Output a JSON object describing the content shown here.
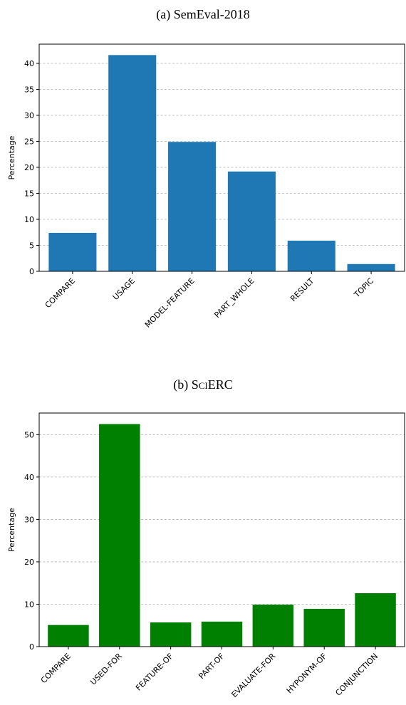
{
  "captions": {
    "a_prefix": "(a) ",
    "a_name": "SemEval-2018",
    "b_prefix": "(b) ",
    "b_name": "SciERC"
  },
  "chart_data": [
    {
      "type": "bar",
      "title": "(a) SemEval-2018",
      "categories": [
        "COMPARE",
        "USAGE",
        "MODEL-FEATURE",
        "PART_WHOLE",
        "RESULT",
        "TOPIC"
      ],
      "values": [
        7.4,
        41.6,
        24.9,
        19.2,
        5.9,
        1.4
      ],
      "xlabel": "",
      "ylabel": "Percentage",
      "ylim": [
        0,
        43.7
      ],
      "yticks": [
        0,
        5,
        10,
        15,
        20,
        25,
        30,
        35,
        40
      ],
      "grid": true,
      "bar_color": "#1f77b4"
    },
    {
      "type": "bar",
      "title": "(b) SciERC",
      "categories": [
        "COMPARE",
        "USED-FOR",
        "FEATURE-OF",
        "PART-OF",
        "EVALUATE-FOR",
        "HYPONYM-OF",
        "CONJUNCTION"
      ],
      "values": [
        5.1,
        52.5,
        5.7,
        5.9,
        9.9,
        8.9,
        12.6
      ],
      "xlabel": "",
      "ylabel": "Percentage",
      "ylim": [
        0,
        55.1
      ],
      "yticks": [
        0,
        10,
        20,
        30,
        40,
        50
      ],
      "grid": true,
      "bar_color": "#008000"
    }
  ]
}
